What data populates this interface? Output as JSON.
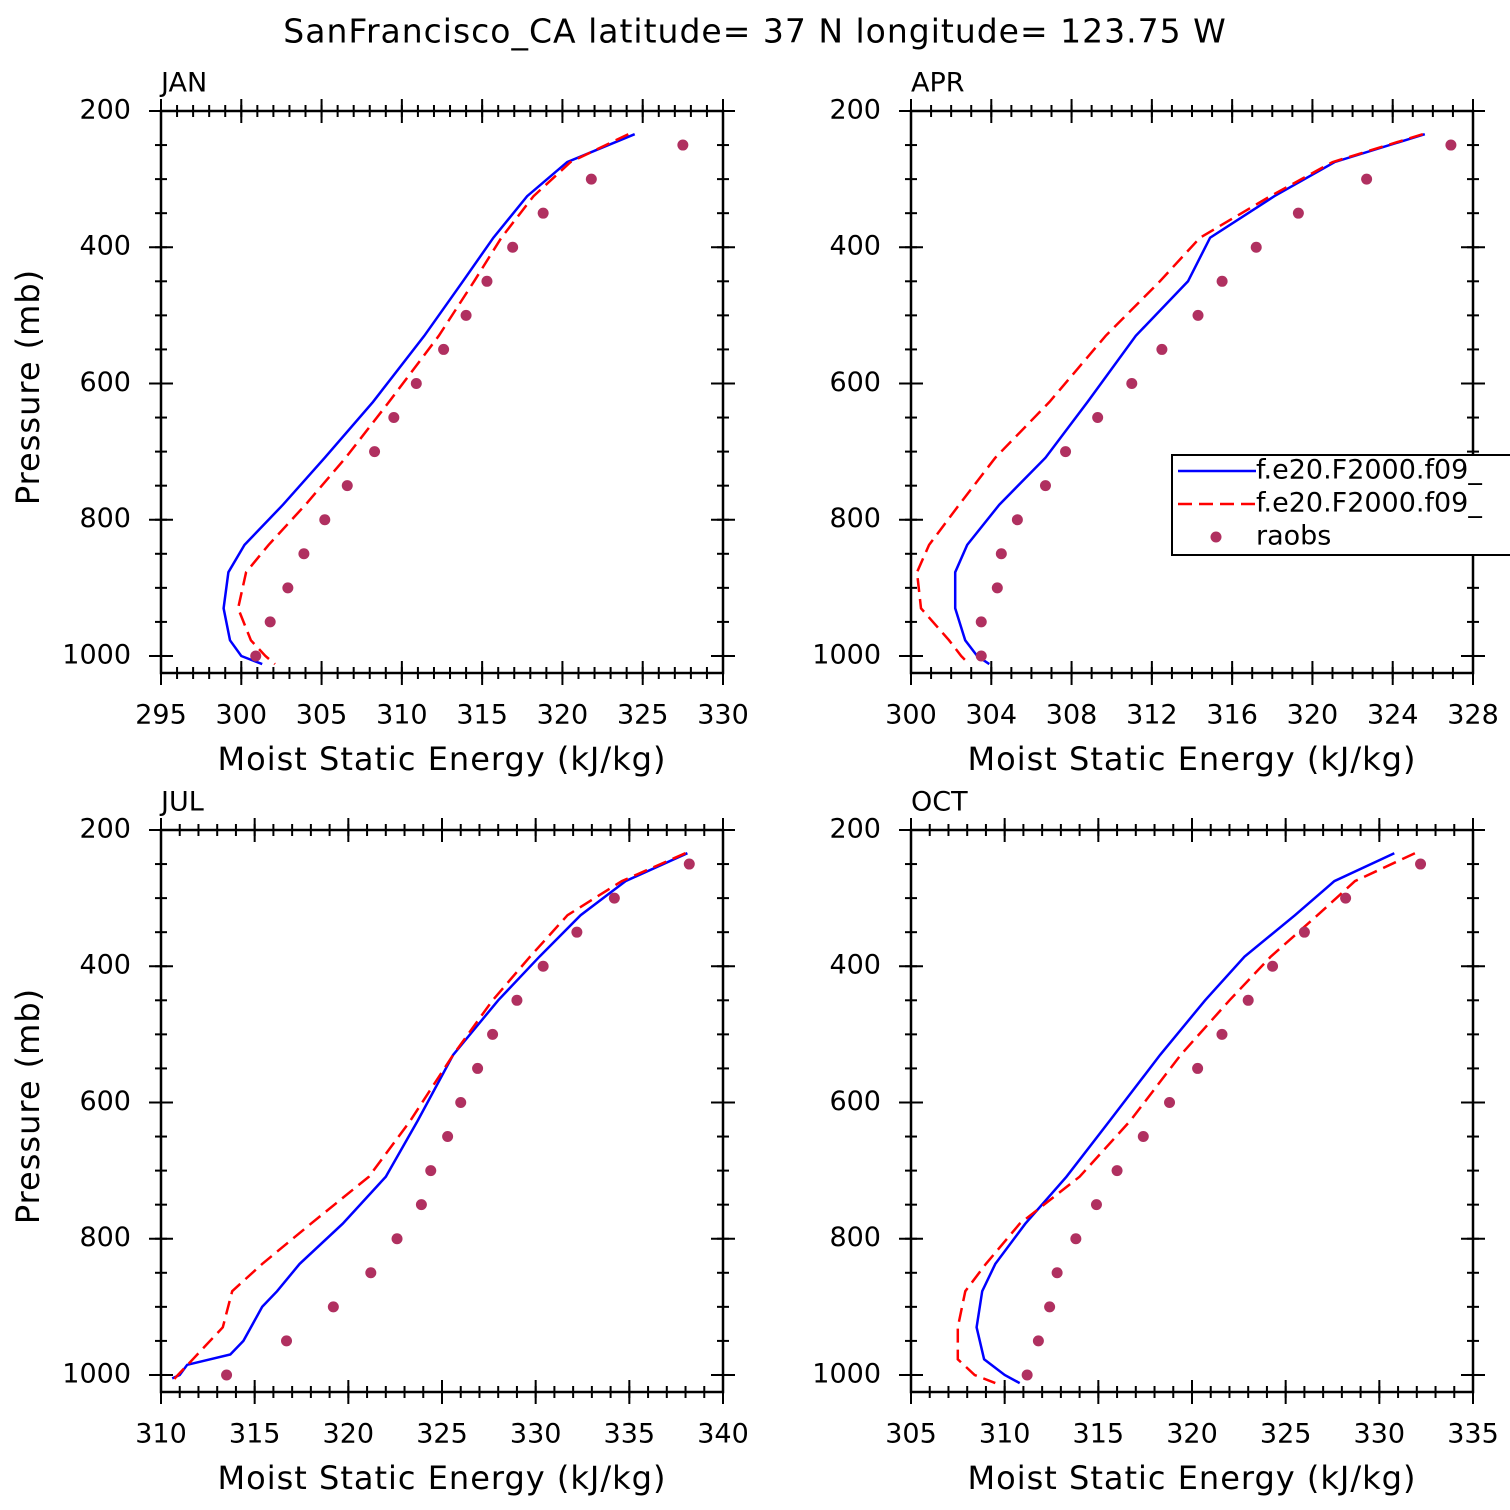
{
  "title": "SanFrancisco_CA  latitude= 37 N longitude= 123.75 W",
  "chart_data": [
    {
      "type": "line",
      "title": "JAN",
      "xlabel": "Moist Static Energy (kJ/kg)",
      "ylabel": "Pressure (mb)",
      "xlim": [
        295,
        330
      ],
      "xticks": [
        295,
        300,
        305,
        310,
        315,
        320,
        325,
        330
      ],
      "ylim": [
        1025,
        200
      ],
      "yticks": [
        200,
        400,
        600,
        800,
        1000
      ],
      "series": [
        {
          "color": "#0000ff",
          "style": "solid",
          "levels": [
            234,
            275,
            325,
            386,
            450,
            530,
            627,
            709,
            778,
            837,
            877,
            930,
            977,
            1000,
            1012
          ],
          "values": [
            324.5,
            320.3,
            317.8,
            315.7,
            313.8,
            311.4,
            308.2,
            305.2,
            302.6,
            300.2,
            299.2,
            298.9,
            299.3,
            300.0,
            301.3
          ]
        },
        {
          "color": "#ff0000",
          "style": "dashed",
          "levels": [
            234,
            275,
            325,
            386,
            450,
            530,
            627,
            709,
            778,
            837,
            877,
            930,
            977,
            1000,
            1012
          ],
          "values": [
            324.1,
            320.5,
            318.2,
            316.2,
            314.5,
            312.3,
            309.2,
            306.5,
            304.0,
            301.7,
            300.3,
            299.8,
            300.6,
            301.5,
            302.1
          ]
        },
        {
          "color": "#b03060",
          "style": "dots",
          "levels": [
            250,
            300,
            350,
            400,
            450,
            500,
            550,
            600,
            650,
            700,
            750,
            800,
            850,
            900,
            950,
            1000
          ],
          "values": [
            327.5,
            321.8,
            318.8,
            316.9,
            315.3,
            314.0,
            312.6,
            310.9,
            309.5,
            308.3,
            306.6,
            305.2,
            303.9,
            302.9,
            301.8,
            300.9
          ]
        }
      ]
    },
    {
      "type": "line",
      "title": "APR",
      "xlabel": "Moist Static Energy (kJ/kg)",
      "xlim": [
        300,
        328
      ],
      "xticks": [
        300,
        304,
        308,
        312,
        316,
        320,
        324,
        328
      ],
      "ylim": [
        1025,
        200
      ],
      "yticks": [
        200,
        400,
        600,
        800,
        1000
      ],
      "legend": "right",
      "series": [
        {
          "name": "f.e20.F2000.f09_",
          "color": "#0000ff",
          "style": "solid",
          "levels": [
            234,
            275,
            325,
            386,
            450,
            530,
            627,
            709,
            778,
            837,
            877,
            930,
            977,
            1000,
            1012
          ],
          "values": [
            325.6,
            321.1,
            318.1,
            314.9,
            313.8,
            311.2,
            308.8,
            306.7,
            304.4,
            302.8,
            302.2,
            302.2,
            302.7,
            303.3,
            303.9
          ]
        },
        {
          "name": "f.e20.F2000.f09_",
          "color": "#ff0000",
          "style": "dashed",
          "levels": [
            234,
            275,
            325,
            386,
            450,
            530,
            627,
            709,
            778,
            837,
            877,
            930,
            977,
            1000,
            1012
          ],
          "values": [
            325.5,
            321.0,
            317.9,
            314.4,
            312.4,
            309.7,
            306.9,
            304.2,
            302.4,
            300.9,
            300.3,
            300.5,
            301.9,
            302.5,
            302.9
          ]
        },
        {
          "name": "raobs",
          "color": "#b03060",
          "style": "dots",
          "levels": [
            250,
            300,
            350,
            400,
            450,
            500,
            550,
            600,
            650,
            700,
            750,
            800,
            850,
            900,
            950,
            1000
          ],
          "values": [
            326.9,
            322.7,
            319.3,
            317.2,
            315.5,
            314.3,
            312.5,
            311.0,
            309.3,
            307.7,
            306.7,
            305.3,
            304.5,
            304.3,
            303.5,
            303.5
          ]
        }
      ]
    },
    {
      "type": "line",
      "title": "JUL",
      "xlabel": "Moist Static Energy (kJ/kg)",
      "ylabel": "Pressure (mb)",
      "xlim": [
        310,
        340
      ],
      "xticks": [
        310,
        315,
        320,
        325,
        330,
        335,
        340
      ],
      "ylim": [
        1025,
        200
      ],
      "yticks": [
        200,
        400,
        600,
        800,
        1000
      ],
      "series": [
        {
          "color": "#0000ff",
          "style": "solid",
          "levels": [
            234,
            275,
            325,
            386,
            450,
            530,
            627,
            709,
            778,
            837,
            877,
            900,
            950,
            970,
            985,
            1000,
            1005
          ],
          "values": [
            338.1,
            334.8,
            332.4,
            330.2,
            328.0,
            325.6,
            323.7,
            322.0,
            319.7,
            317.4,
            316.2,
            315.4,
            314.4,
            313.7,
            311.4,
            311.0,
            310.6
          ]
        },
        {
          "color": "#ff0000",
          "style": "dashed",
          "levels": [
            234,
            275,
            325,
            386,
            450,
            530,
            627,
            709,
            778,
            837,
            877,
            930,
            977,
            1000,
            1012
          ],
          "values": [
            338.0,
            334.6,
            331.7,
            329.7,
            327.7,
            325.6,
            323.3,
            321.1,
            318.0,
            315.4,
            313.8,
            313.3,
            311.7,
            310.9,
            310.5
          ]
        },
        {
          "color": "#b03060",
          "style": "dots",
          "levels": [
            250,
            300,
            350,
            400,
            450,
            500,
            550,
            600,
            650,
            700,
            750,
            800,
            850,
            900,
            950,
            1000
          ],
          "values": [
            338.2,
            334.2,
            332.2,
            330.4,
            329.0,
            327.7,
            326.9,
            326.0,
            325.3,
            324.4,
            323.9,
            322.6,
            321.2,
            319.2,
            316.7,
            313.5
          ]
        }
      ]
    },
    {
      "type": "line",
      "title": "OCT",
      "xlabel": "Moist Static Energy (kJ/kg)",
      "xlim": [
        305,
        335
      ],
      "xticks": [
        305,
        310,
        315,
        320,
        325,
        330,
        335
      ],
      "ylim": [
        1025,
        200
      ],
      "yticks": [
        200,
        400,
        600,
        800,
        1000
      ],
      "series": [
        {
          "color": "#0000ff",
          "style": "solid",
          "levels": [
            234,
            275,
            325,
            386,
            450,
            530,
            627,
            709,
            778,
            837,
            877,
            930,
            977,
            1000,
            1012
          ],
          "values": [
            330.8,
            327.6,
            325.5,
            322.8,
            320.7,
            318.3,
            315.6,
            313.3,
            311.1,
            309.5,
            308.8,
            308.5,
            308.9,
            310.0,
            310.8
          ]
        },
        {
          "color": "#ff0000",
          "style": "dashed",
          "levels": [
            234,
            275,
            325,
            386,
            450,
            530,
            627,
            709,
            778,
            837,
            877,
            930,
            977,
            1000,
            1012
          ],
          "values": [
            331.9,
            328.7,
            326.7,
            324.2,
            322.0,
            319.4,
            316.7,
            314.0,
            310.8,
            309.0,
            307.9,
            307.5,
            307.5,
            308.4,
            309.5
          ]
        },
        {
          "color": "#b03060",
          "style": "dots",
          "levels": [
            250,
            300,
            350,
            400,
            450,
            500,
            550,
            600,
            650,
            700,
            750,
            800,
            850,
            900,
            950,
            1000
          ],
          "values": [
            332.2,
            328.2,
            326.0,
            324.3,
            323.0,
            321.6,
            320.3,
            318.8,
            317.4,
            316.0,
            314.9,
            313.8,
            312.8,
            312.4,
            311.8,
            311.2
          ]
        }
      ]
    }
  ]
}
